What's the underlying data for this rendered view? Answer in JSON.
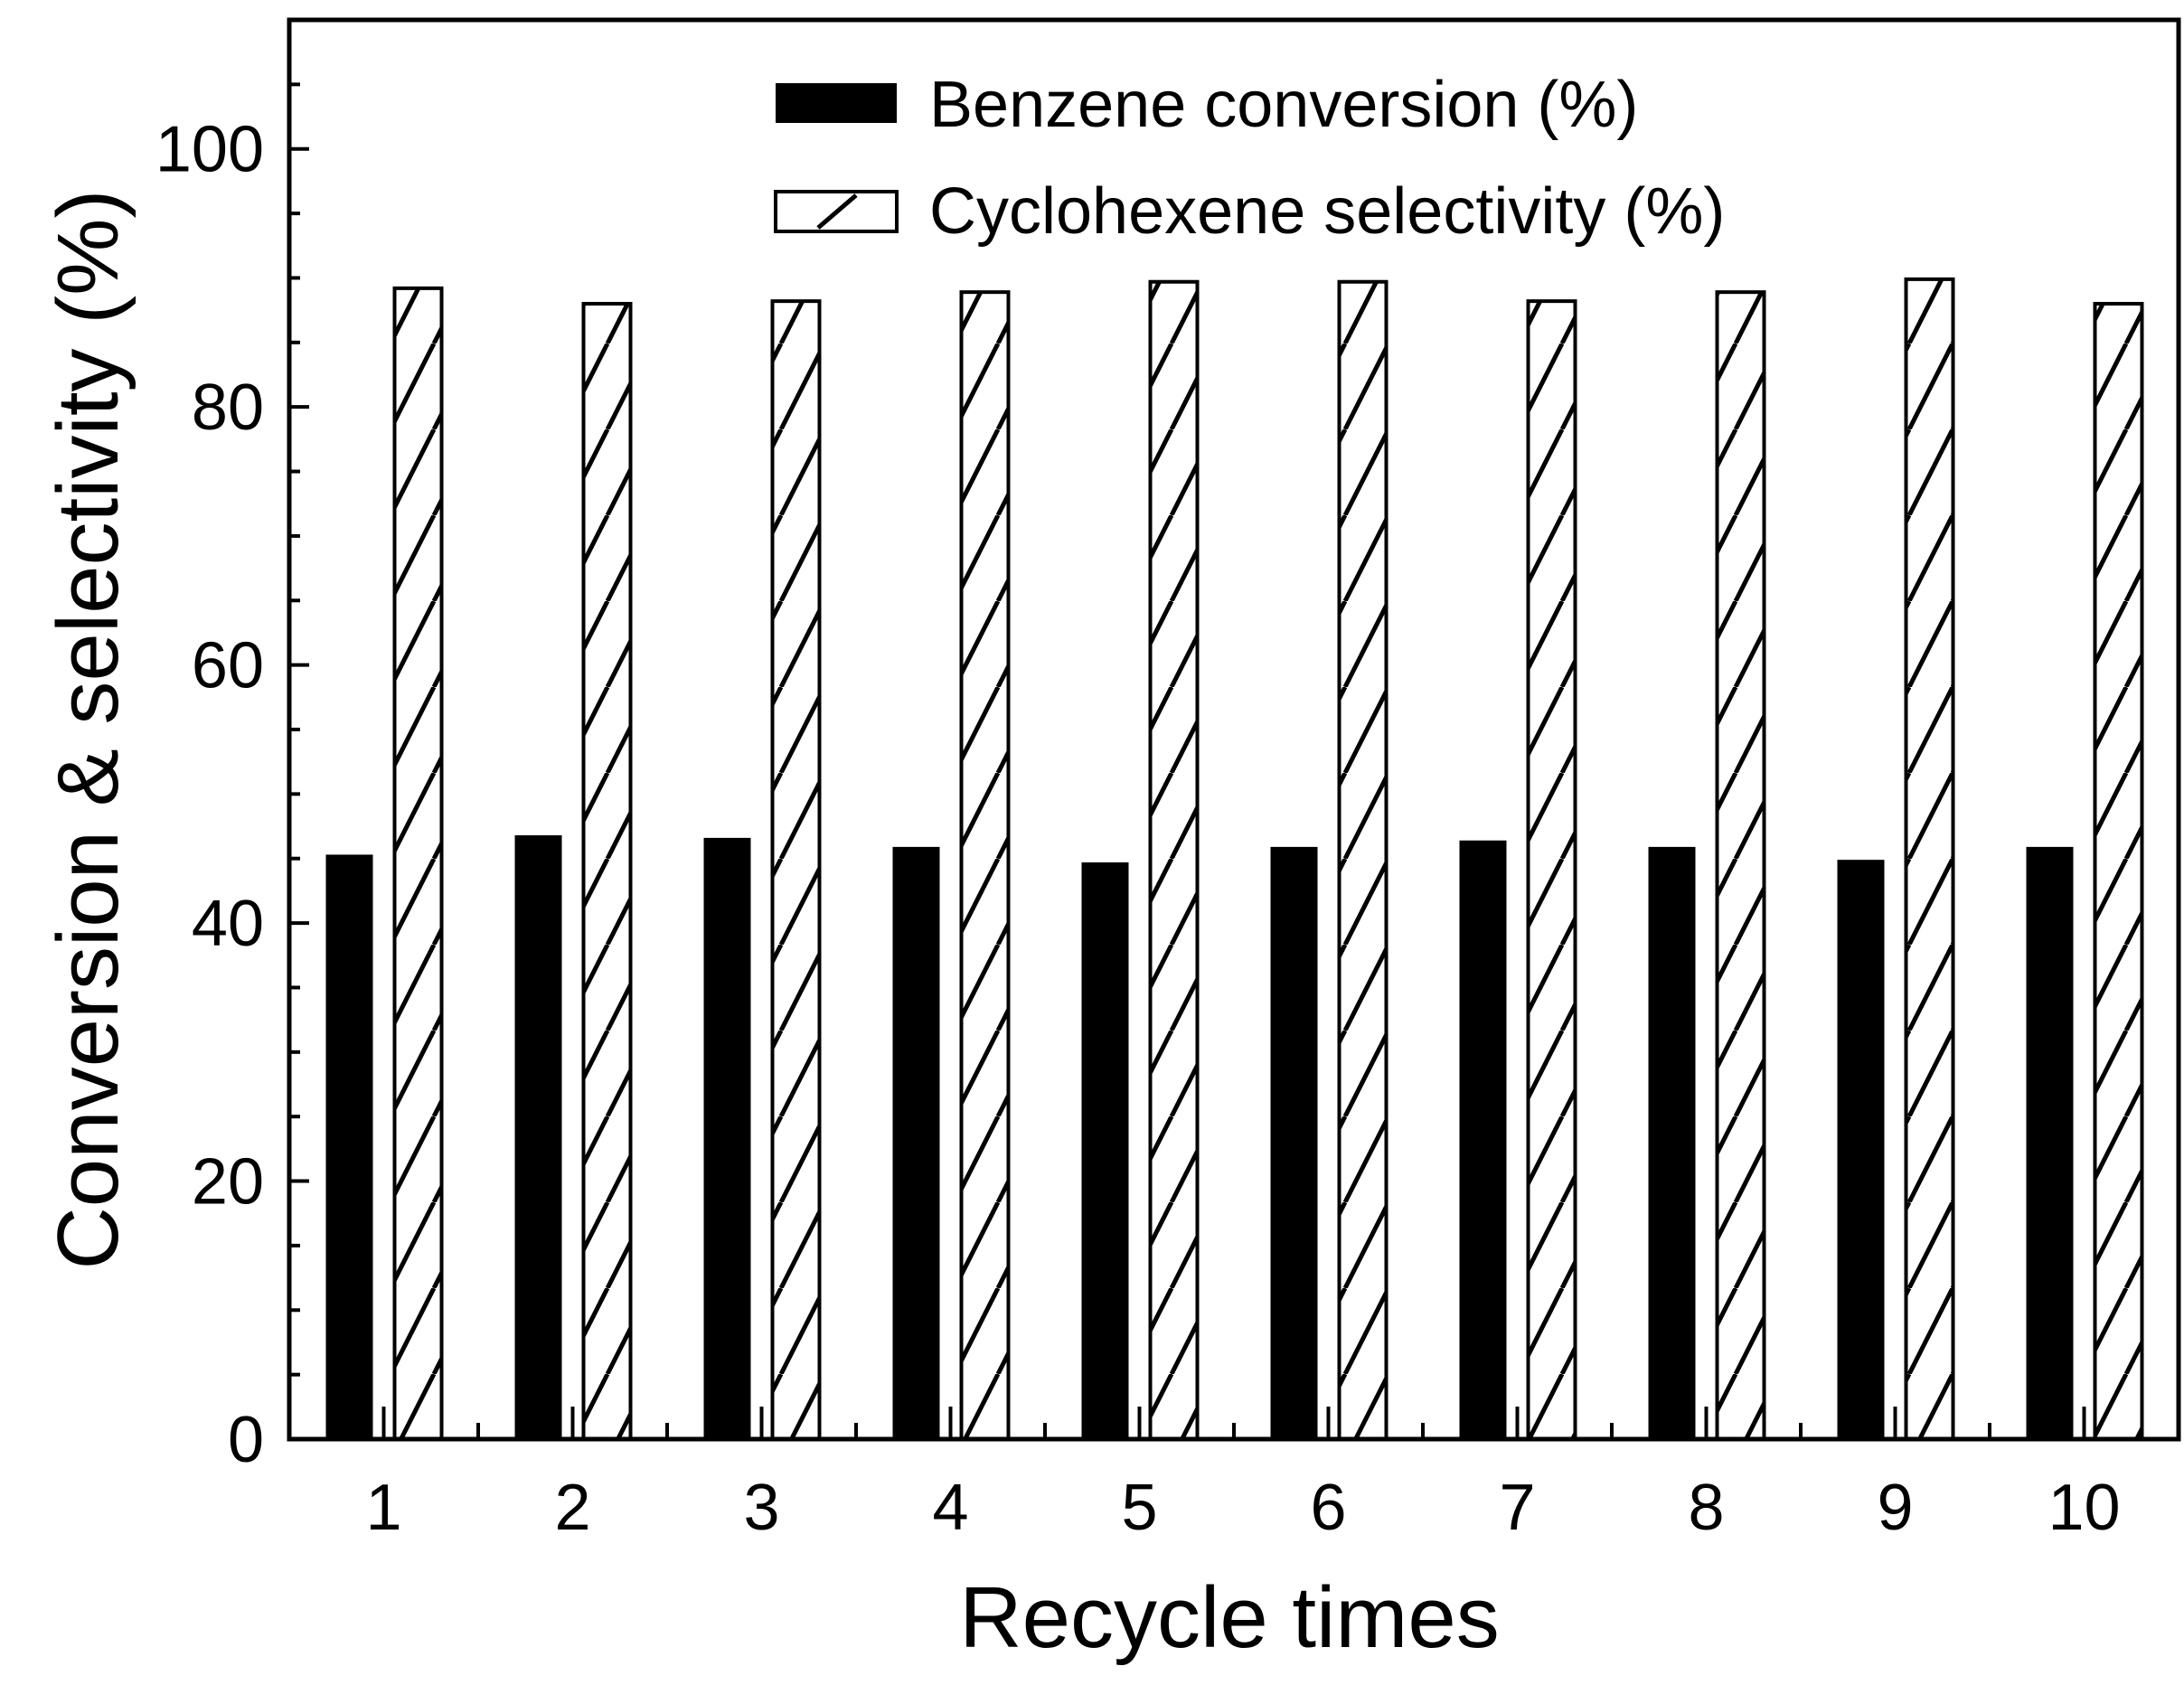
{
  "chart_data": {
    "type": "bar",
    "title": "",
    "xlabel": "Recycle times",
    "ylabel": "Conversion & selectivity (%)",
    "categories": [
      "1",
      "2",
      "3",
      "4",
      "5",
      "6",
      "7",
      "8",
      "9",
      "10"
    ],
    "series": [
      {
        "name": "Benzene conversion (%)",
        "style": "solid",
        "color": "#000000",
        "values": [
          45.3,
          46.8,
          46.6,
          45.9,
          44.7,
          45.9,
          46.4,
          45.9,
          44.9,
          45.9
        ]
      },
      {
        "name": "Cyclohexene selectivity (%)",
        "style": "hatched",
        "color": "#000000",
        "values": [
          89.2,
          88.0,
          88.2,
          88.9,
          89.7,
          89.7,
          88.2,
          88.9,
          89.9,
          88.0
        ]
      }
    ],
    "ylim": [
      0,
      110
    ],
    "yticks": [
      "0",
      "20",
      "40",
      "60",
      "80",
      "100"
    ],
    "yticks_values": [
      0,
      20,
      40,
      60,
      80,
      100
    ],
    "minor_tick_step": 5,
    "grid": false,
    "legend_position": "top-right"
  }
}
